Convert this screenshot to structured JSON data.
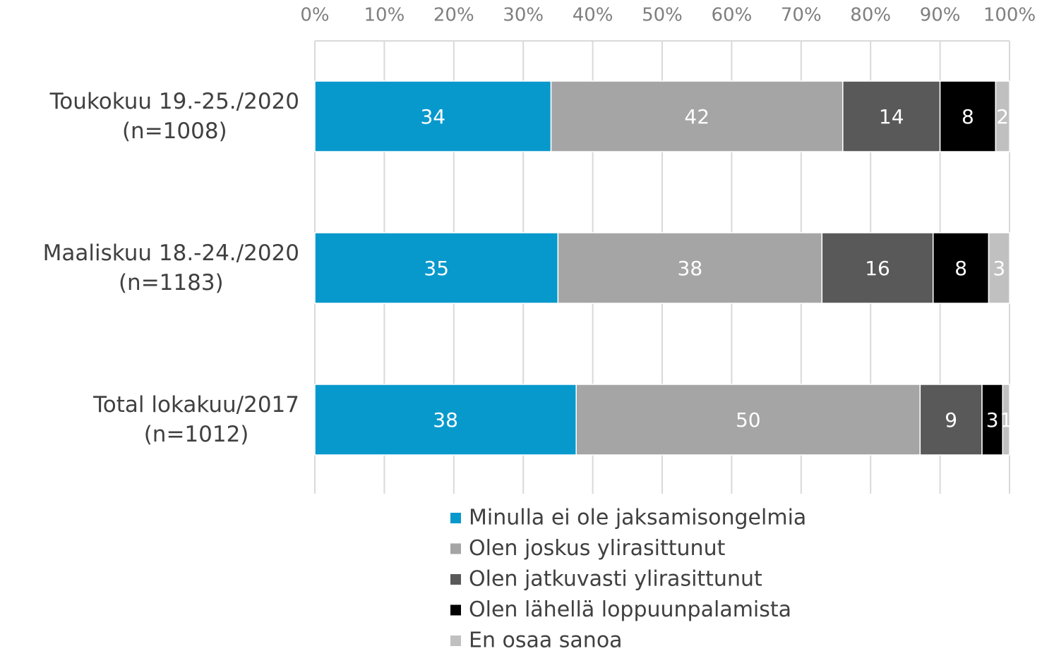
{
  "chart_data": {
    "type": "bar",
    "orientation": "horizontal",
    "stacked": "percent",
    "categories": [
      "Toukokuu 19.-25./2020\n(n=1008)",
      "Maaliskuu 18.-24./2020\n(n=1183)",
      "Total lokakuu/2017\n(n=1012)"
    ],
    "series": [
      {
        "name": "Minulla ei ole jaksamisongelmia",
        "color": "#0899cc",
        "values": [
          34,
          35,
          38
        ]
      },
      {
        "name": "Olen joskus ylirasittunut",
        "color": "#a5a5a5",
        "values": [
          42,
          38,
          50
        ]
      },
      {
        "name": "Olen jatkuvasti ylirasittunut",
        "color": "#595959",
        "values": [
          14,
          16,
          9
        ]
      },
      {
        "name": "Olen lähellä loppuunpalamista",
        "color": "#000000",
        "values": [
          8,
          8,
          3
        ]
      },
      {
        "name": "En osaa sanoa",
        "color": "#c0c0c0",
        "values": [
          2,
          3,
          1
        ]
      }
    ],
    "xlim": [
      0,
      100
    ],
    "xticks": [
      {
        "value": 0,
        "label": "0%"
      },
      {
        "value": 10,
        "label": "10%"
      },
      {
        "value": 20,
        "label": "20%"
      },
      {
        "value": 30,
        "label": "30%"
      },
      {
        "value": 40,
        "label": "40%"
      },
      {
        "value": 50,
        "label": "50%"
      },
      {
        "value": 60,
        "label": "60%"
      },
      {
        "value": 70,
        "label": "70%"
      },
      {
        "value": 80,
        "label": "80%"
      },
      {
        "value": 90,
        "label": "90%"
      },
      {
        "value": 100,
        "label": "100%"
      }
    ],
    "grid": true,
    "legend": "bottom"
  }
}
